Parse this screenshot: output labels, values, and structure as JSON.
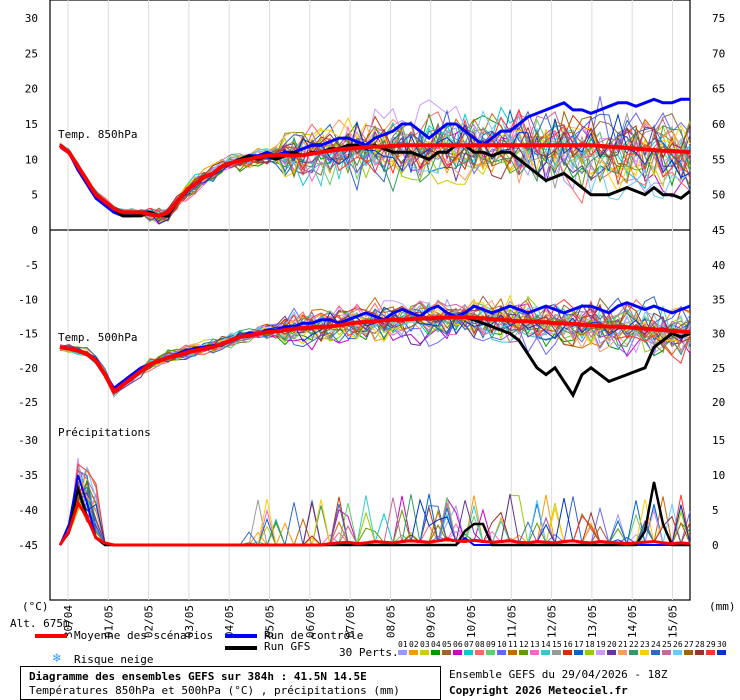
{
  "chart_data": {
    "type": "line",
    "title": "Diagramme des ensembles GEFS sur 384h : 41.5N 14.5E",
    "subtitle": "Températures 850hPa et 500hPa (°C) , précipitations (mm)",
    "panels": [
      {
        "label": "Temp. 850hPa",
        "ylim_left": [
          0,
          30
        ],
        "ylim_right": [
          45,
          75
        ],
        "left_ticks": [
          "30",
          "25",
          "20",
          "15",
          "10",
          "5",
          "0"
        ],
        "right_ticks": [
          "75",
          "70",
          "65",
          "60",
          "55",
          "50",
          "45"
        ]
      },
      {
        "label": "Temp. 500hPa",
        "ylim_left": [
          -25,
          -5
        ],
        "ylim_right": [
          20,
          40
        ],
        "left_ticks": [
          "-5",
          "-10",
          "-15",
          "-20",
          "-25"
        ],
        "right_ticks": [
          "40",
          "35",
          "30",
          "25",
          "20"
        ]
      },
      {
        "label": "Précipitations",
        "ylim_left": [
          -45,
          -30
        ],
        "ylim_right": [
          0,
          15
        ],
        "left_ticks": [
          "-30",
          "-35",
          "-40",
          "-45"
        ],
        "right_ticks": [
          "15",
          "10",
          "5",
          "0"
        ]
      }
    ],
    "x_ticks": [
      "30/04",
      "01/05",
      "02/05",
      "03/05",
      "04/05",
      "05/05",
      "06/05",
      "07/05",
      "08/05",
      "09/05",
      "10/05",
      "11/05",
      "12/05",
      "13/05",
      "14/05",
      "15/05"
    ],
    "unit_left": "(°C)",
    "unit_right": "(mm)",
    "altitude": "Alt. 675m",
    "legend": {
      "mean": "Moyenne des scénarios",
      "control": "Run de contrôle",
      "gfs": "Run GFS",
      "snow": "Risque neige",
      "perts_label": "30 Perts.",
      "pert_numbers": [
        "01",
        "02",
        "03",
        "04",
        "05",
        "06",
        "07",
        "08",
        "09",
        "10",
        "11",
        "12",
        "13",
        "14",
        "15",
        "16",
        "17",
        "18",
        "19",
        "20",
        "21",
        "22",
        "23",
        "24",
        "25",
        "26",
        "27",
        "28",
        "29",
        "30"
      ]
    },
    "colors": {
      "mean": "#ff0000",
      "control": "#0000ff",
      "gfs": "#000000",
      "snow": "#3399ff",
      "perts": [
        "#9999ff",
        "#ff9900",
        "#cccc00",
        "#009900",
        "#996633",
        "#cc00cc",
        "#00cccc",
        "#ff6666",
        "#66cc66",
        "#6666ff",
        "#cc6600",
        "#669900",
        "#ff66cc",
        "#33cccc",
        "#999999",
        "#cc3300",
        "#0066cc",
        "#99cc00",
        "#cc99ff",
        "#663399",
        "#ff9966",
        "#339966",
        "#ffcc00",
        "#3366cc",
        "#cc6699",
        "#66ccff",
        "#996600",
        "#993333",
        "#ff3333",
        "#0033cc"
      ]
    },
    "series_t850": {
      "mean": [
        12,
        11,
        9,
        7,
        5,
        4,
        3,
        2.5,
        2.5,
        2.5,
        2.2,
        2,
        2.5,
        4,
        5.5,
        6.5,
        7.5,
        8,
        9,
        9.5,
        9.8,
        10,
        10.3,
        10.5,
        10.6,
        10.6,
        10.5,
        10.6,
        10.8,
        11,
        11.2,
        11.4,
        11.5,
        11.6,
        11.7,
        11.8,
        11.8,
        11.9,
        12,
        12,
        12,
        12,
        12,
        12,
        12,
        12,
        12,
        12,
        12,
        12,
        12,
        12,
        12,
        12,
        12,
        12,
        12,
        12,
        12,
        12,
        11.9,
        11.8,
        11.7,
        11.6,
        11.5,
        11.4,
        11.3,
        11.2,
        11.2,
        11.1,
        11
      ],
      "control": [
        12,
        11,
        8.5,
        6.5,
        4.5,
        3.5,
        2.5,
        2,
        2,
        2.5,
        2.5,
        2,
        2,
        4,
        5.5,
        6.5,
        7.5,
        8,
        9,
        9.5,
        10,
        10.5,
        10.5,
        11,
        10.5,
        11,
        11,
        11.5,
        12,
        12,
        12.5,
        13,
        13,
        12.5,
        12,
        13,
        13.5,
        14,
        15,
        15,
        14,
        13,
        14,
        15,
        15,
        14,
        13,
        12,
        13,
        14,
        14,
        15,
        16,
        16.5,
        17,
        17.5,
        18,
        17,
        17,
        16.5,
        17,
        17.5,
        18,
        18,
        17.5,
        18,
        18.5,
        18,
        18,
        18.5,
        18.5
      ],
      "gfs": [
        12,
        11,
        9,
        7,
        5,
        4,
        3,
        2,
        2,
        2,
        2.5,
        2,
        2,
        4,
        5.5,
        6.5,
        7.5,
        8,
        9,
        9.5,
        10,
        10.5,
        10,
        10.5,
        10,
        10.5,
        11,
        10.5,
        11,
        11,
        11.5,
        11.5,
        12,
        12,
        11.5,
        12,
        11.5,
        11,
        11,
        11,
        10.5,
        10,
        11,
        11,
        12,
        12,
        11,
        11,
        10.5,
        11,
        11,
        10,
        9,
        8,
        7,
        7.5,
        8,
        7,
        6,
        5,
        5,
        5,
        5.5,
        6,
        5.5,
        5,
        6,
        5,
        5,
        4.5,
        5.5
      ]
    },
    "series_t500": {
      "mean": [
        -17,
        -17.2,
        -17.5,
        -18,
        -19,
        -21,
        -23.5,
        -22.5,
        -21.5,
        -20.5,
        -19.5,
        -19,
        -18.5,
        -18.2,
        -17.8,
        -17.5,
        -17.2,
        -17,
        -16.5,
        -16,
        -15.5,
        -15.3,
        -15,
        -14.8,
        -14.7,
        -14.5,
        -14.3,
        -14.2,
        -14.1,
        -14,
        -14,
        -13.8,
        -13.6,
        -13.4,
        -13.3,
        -13.2,
        -13.1,
        -13,
        -13,
        -12.9,
        -12.8,
        -12.8,
        -12.7,
        -12.7,
        -12.6,
        -12.6,
        -12.7,
        -12.8,
        -12.9,
        -13,
        -13.1,
        -13.2,
        -13.2,
        -13.3,
        -13.4,
        -13.5,
        -13.5,
        -13.6,
        -13.7,
        -13.8,
        -13.9,
        -14,
        -14,
        -14.1,
        -14.2,
        -14.3,
        -14.4,
        -14.5,
        -14.6,
        -14.7,
        -14.8
      ],
      "control": [
        -17,
        -17.2,
        -17.5,
        -18,
        -19,
        -21,
        -23,
        -22,
        -21,
        -20,
        -19.5,
        -19,
        -18.5,
        -18,
        -17.5,
        -17.2,
        -17,
        -16.8,
        -16.5,
        -16,
        -15.5,
        -15,
        -15,
        -14.5,
        -14.5,
        -14,
        -14,
        -13.5,
        -13.5,
        -13,
        -13,
        -13.5,
        -13,
        -12.5,
        -12,
        -12.5,
        -13,
        -12,
        -11.5,
        -12,
        -12.5,
        -11.5,
        -11,
        -12,
        -12.5,
        -12,
        -11,
        -11.5,
        -12,
        -11.5,
        -11,
        -11.5,
        -12,
        -11.5,
        -11,
        -11.5,
        -12,
        -11.5,
        -11,
        -11,
        -11.5,
        -12,
        -11,
        -10.5,
        -11,
        -11.5,
        -11,
        -11.5,
        -12,
        -11.5,
        -11
      ],
      "gfs": [
        -17,
        -17.2,
        -17.5,
        -18,
        -19,
        -21,
        -23.5,
        -22.5,
        -21.5,
        -20.5,
        -19.5,
        -19,
        -18.5,
        -18.2,
        -17.8,
        -17.5,
        -17.2,
        -17,
        -16.5,
        -16,
        -15.5,
        -15.3,
        -15,
        -14.8,
        -14.7,
        -14.5,
        -14.3,
        -14.2,
        -14.1,
        -14,
        -14,
        -13.8,
        -13.6,
        -13.4,
        -13.3,
        -13.2,
        -13.1,
        -13,
        -13,
        -12.9,
        -12.8,
        -12.8,
        -12.7,
        -12.7,
        -12.6,
        -12.6,
        -13,
        -13.5,
        -14,
        -14.5,
        -15,
        -16,
        -18,
        -20,
        -21,
        -20,
        -22,
        -24,
        -21,
        -20,
        -21,
        -22,
        -21.5,
        -21,
        -20.5,
        -20,
        -17,
        -16,
        -15,
        -15.5,
        -15
      ]
    },
    "series_precip": {
      "mean": [
        0,
        2,
        6,
        4,
        1,
        0.3,
        0,
        0,
        0,
        0,
        0,
        0,
        0,
        0,
        0,
        0,
        0,
        0,
        0,
        0,
        0,
        0,
        0,
        0,
        0,
        0,
        0,
        0,
        0,
        0,
        0.2,
        0.3,
        0.4,
        0.2,
        0.3,
        0.5,
        0.4,
        0.3,
        0.5,
        0.6,
        0.5,
        0.4,
        0.6,
        0.8,
        0.6,
        0.5,
        0.7,
        0.5,
        0.4,
        0.5,
        0.6,
        0.4,
        0.3,
        0.5,
        0.4,
        0.3,
        0.5,
        0.6,
        0.4,
        0.3,
        0.5,
        0.4,
        0.3,
        0.2,
        0.3,
        0.4,
        0.5,
        0.3,
        0.2,
        0.3,
        0.2
      ],
      "control": [
        0,
        3,
        10,
        6,
        1,
        0,
        0,
        0,
        0,
        0,
        0,
        0,
        0,
        0,
        0,
        0,
        0,
        0,
        0,
        0,
        0,
        0,
        0,
        0,
        0,
        0,
        0,
        0,
        0,
        0,
        0,
        0,
        0,
        0,
        0,
        0,
        0,
        0,
        0,
        0,
        0,
        0,
        0,
        0,
        0,
        1,
        0,
        0,
        0,
        0,
        0,
        0,
        0,
        0,
        0,
        0,
        0,
        0,
        0,
        0,
        0,
        0,
        0,
        0,
        0,
        0,
        0,
        0,
        0,
        0,
        0
      ],
      "gfs": [
        0,
        2,
        8,
        4,
        1,
        0,
        0,
        0,
        0,
        0,
        0,
        0,
        0,
        0,
        0,
        0,
        0,
        0,
        0,
        0,
        0,
        0,
        0,
        0,
        0,
        0,
        0,
        0,
        0,
        0,
        0,
        0,
        0,
        0,
        0,
        0,
        0,
        0,
        0,
        0,
        0,
        0,
        0,
        0,
        0,
        2,
        3,
        3,
        0,
        0,
        0,
        0,
        0,
        0,
        0,
        0,
        0,
        0,
        0,
        0,
        0,
        0,
        0,
        0,
        0,
        2,
        9,
        3,
        0,
        0,
        0
      ]
    }
  },
  "footer": {
    "run_info": "Ensemble GEFS du 29/04/2026 - 18Z",
    "copyright": "Copyright 2026 Meteociel.fr"
  }
}
